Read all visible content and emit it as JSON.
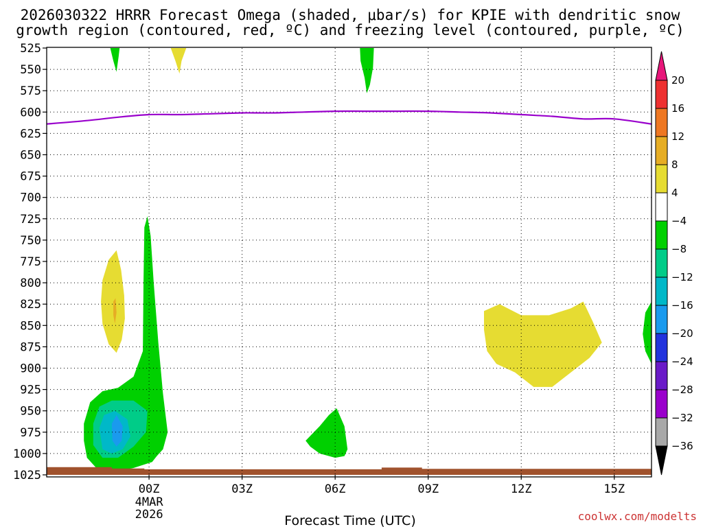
{
  "chart_data": {
    "type": "heatmap",
    "title_lines": [
      "2026030322 HRRR Forecast Omega (shaded, μbar/s) for KPIE with dendritic snow",
      "growth region (contoured, red, ºC) and freezing level (contoured, purple, ºC)"
    ],
    "xlabel": "Forecast Time (UTC)",
    "credit": "coolwx.com/modelts",
    "x_range_hours": [
      -3.3,
      16.2
    ],
    "y_range_hpa": [
      525,
      1025
    ],
    "y_ticks": [
      525,
      550,
      575,
      600,
      625,
      650,
      675,
      700,
      725,
      750,
      775,
      800,
      825,
      850,
      875,
      900,
      925,
      950,
      975,
      1000,
      1025
    ],
    "x_ticks": [
      {
        "hour": 0,
        "label": "00Z",
        "sub": [
          "4MAR",
          "2026"
        ]
      },
      {
        "hour": 3,
        "label": "03Z"
      },
      {
        "hour": 6,
        "label": "06Z"
      },
      {
        "hour": 9,
        "label": "09Z"
      },
      {
        "hour": 12,
        "label": "12Z"
      },
      {
        "hour": 15,
        "label": "15Z"
      }
    ],
    "grid": true,
    "colorbar": {
      "labels": [
        "20",
        "16",
        "12",
        "8",
        "4",
        "−4",
        "−8",
        "−12",
        "−16",
        "−20",
        "−24",
        "−28",
        "−32",
        "−36"
      ],
      "bins": [
        {
          "top": 20,
          "color": "#e8267a"
        },
        {
          "top": 16,
          "color": "#ee3030"
        },
        {
          "top": 12,
          "color": "#ee7722"
        },
        {
          "top": 8,
          "color": "#e6ad24"
        },
        {
          "top": 4,
          "color": "#e6dc32"
        },
        {
          "top": -4,
          "color": "#ffffff"
        },
        {
          "top": -8,
          "color": "#00d000"
        },
        {
          "top": -12,
          "color": "#00cc88"
        },
        {
          "top": -16,
          "color": "#00b8c8"
        },
        {
          "top": -20,
          "color": "#1a9aee"
        },
        {
          "top": -24,
          "color": "#2233dd"
        },
        {
          "top": -28,
          "color": "#6a1ac8"
        },
        {
          "top": -32,
          "color": "#9a00cc"
        },
        {
          "top": -36,
          "color": "#a8a8a8"
        }
      ],
      "top_arrow_color": "#e8167a",
      "bottom_arrow_color": "#000000"
    },
    "freezing_level": {
      "color": "#9900cc",
      "hours": [
        -3.3,
        -2,
        -1,
        0,
        1,
        2,
        3,
        4,
        5,
        6,
        7,
        8,
        9,
        10,
        11,
        12,
        13,
        14,
        15,
        16.2
      ],
      "hpa": [
        614,
        610,
        606,
        603,
        603,
        602,
        601,
        601,
        600,
        599,
        599,
        599,
        599,
        600,
        601,
        603,
        605,
        608,
        608,
        614
      ]
    },
    "shaded_regions": [
      {
        "name": "green-top-left",
        "color": "#00d000",
        "pts": [
          [
            -1.25,
            525
          ],
          [
            -0.95,
            525
          ],
          [
            -0.98,
            535
          ],
          [
            -1.05,
            553
          ],
          [
            -1.15,
            540
          ]
        ]
      },
      {
        "name": "yellow-top",
        "color": "#e6dc32",
        "pts": [
          [
            0.7,
            525
          ],
          [
            1.2,
            525
          ],
          [
            1.05,
            540
          ],
          [
            0.98,
            555
          ],
          [
            0.85,
            540
          ]
        ]
      },
      {
        "name": "green-top-mid",
        "color": "#00d000",
        "pts": [
          [
            6.8,
            525
          ],
          [
            7.25,
            525
          ],
          [
            7.22,
            548
          ],
          [
            7.12,
            568
          ],
          [
            7.02,
            578
          ],
          [
            6.95,
            560
          ],
          [
            6.82,
            540
          ]
        ]
      },
      {
        "name": "yellow-left",
        "color": "#e6dc32",
        "pts": [
          [
            -1.5,
            797
          ],
          [
            -1.3,
            773
          ],
          [
            -1.05,
            762
          ],
          [
            -0.9,
            785
          ],
          [
            -0.8,
            815
          ],
          [
            -0.78,
            842
          ],
          [
            -0.88,
            867
          ],
          [
            -1.05,
            882
          ],
          [
            -1.3,
            872
          ],
          [
            -1.5,
            848
          ],
          [
            -1.55,
            822
          ]
        ]
      },
      {
        "name": "orange-left",
        "color": "#e6ad24",
        "pts": [
          [
            -1.15,
            822
          ],
          [
            -1.08,
            818
          ],
          [
            -1.05,
            835
          ],
          [
            -1.1,
            848
          ],
          [
            -1.15,
            838
          ]
        ]
      },
      {
        "name": "green-tall",
        "color": "#00d000",
        "pts": [
          [
            -0.15,
            735
          ],
          [
            -0.05,
            722
          ],
          [
            0.05,
            745
          ],
          [
            0.15,
            800
          ],
          [
            0.3,
            870
          ],
          [
            0.45,
            930
          ],
          [
            0.6,
            975
          ],
          [
            0.45,
            995
          ],
          [
            0.25,
            1003
          ],
          [
            0.1,
            1010
          ],
          [
            -0.5,
            1017
          ],
          [
            -1.1,
            1021
          ],
          [
            -1.7,
            1017
          ],
          [
            -2.0,
            1005
          ],
          [
            -2.1,
            985
          ],
          [
            -2.1,
            965
          ],
          [
            -1.9,
            940
          ],
          [
            -1.5,
            927
          ],
          [
            -1.0,
            923
          ],
          [
            -0.5,
            910
          ],
          [
            -0.2,
            880
          ],
          [
            -0.18,
            800
          ]
        ]
      },
      {
        "name": "teal-low",
        "color": "#00cc88",
        "pts": [
          [
            -1.8,
            965
          ],
          [
            -1.6,
            945
          ],
          [
            -1.2,
            938
          ],
          [
            -0.5,
            938
          ],
          [
            -0.05,
            950
          ],
          [
            -0.1,
            975
          ],
          [
            -0.5,
            992
          ],
          [
            -1.0,
            1005
          ],
          [
            -1.5,
            1005
          ],
          [
            -1.8,
            990
          ]
        ]
      },
      {
        "name": "cyan-low",
        "color": "#00b8c8",
        "pts": [
          [
            -1.6,
            970
          ],
          [
            -1.45,
            955
          ],
          [
            -1.1,
            950
          ],
          [
            -0.7,
            960
          ],
          [
            -0.6,
            980
          ],
          [
            -0.85,
            995
          ],
          [
            -1.2,
            1000
          ],
          [
            -1.5,
            995
          ]
        ]
      },
      {
        "name": "blue-low",
        "color": "#1a9aee",
        "pts": [
          [
            -1.2,
            965
          ],
          [
            -1.05,
            955
          ],
          [
            -0.85,
            968
          ],
          [
            -0.88,
            985
          ],
          [
            -1.05,
            992
          ],
          [
            -1.18,
            985
          ]
        ]
      },
      {
        "name": "green-06z",
        "color": "#00d000",
        "pts": [
          [
            5.05,
            985
          ],
          [
            5.5,
            968
          ],
          [
            5.8,
            955
          ],
          [
            6.05,
            947
          ],
          [
            6.3,
            968
          ],
          [
            6.4,
            995
          ],
          [
            6.3,
            1003
          ],
          [
            6.0,
            1005
          ],
          [
            5.5,
            1000
          ],
          [
            5.2,
            992
          ]
        ]
      },
      {
        "name": "yellow-right",
        "color": "#e6dc32",
        "pts": [
          [
            10.8,
            833
          ],
          [
            11.3,
            825
          ],
          [
            12.0,
            838
          ],
          [
            12.9,
            838
          ],
          [
            13.6,
            830
          ],
          [
            14.0,
            822
          ],
          [
            14.3,
            845
          ],
          [
            14.6,
            870
          ],
          [
            14.2,
            888
          ],
          [
            13.6,
            905
          ],
          [
            13.0,
            922
          ],
          [
            12.4,
            922
          ],
          [
            11.8,
            905
          ],
          [
            11.2,
            895
          ],
          [
            10.9,
            880
          ],
          [
            10.8,
            855
          ]
        ]
      },
      {
        "name": "green-right-edge",
        "color": "#00d000",
        "pts": [
          [
            16.2,
            822
          ],
          [
            16.0,
            835
          ],
          [
            15.92,
            860
          ],
          [
            16.0,
            880
          ],
          [
            16.2,
            895
          ]
        ]
      },
      {
        "name": "surface-terrain",
        "color": "#a0522d",
        "pts": [
          [
            -3.3,
            1016
          ],
          [
            -1.2,
            1016
          ],
          [
            -1.2,
            1017.5
          ],
          [
            -0.15,
            1017.5
          ],
          [
            -0.15,
            1018.5
          ],
          [
            7.5,
            1018.5
          ],
          [
            7.5,
            1016.5
          ],
          [
            8.8,
            1016.5
          ],
          [
            8.8,
            1018
          ],
          [
            16.2,
            1018
          ],
          [
            16.2,
            1025
          ],
          [
            -3.3,
            1025
          ]
        ]
      }
    ]
  }
}
